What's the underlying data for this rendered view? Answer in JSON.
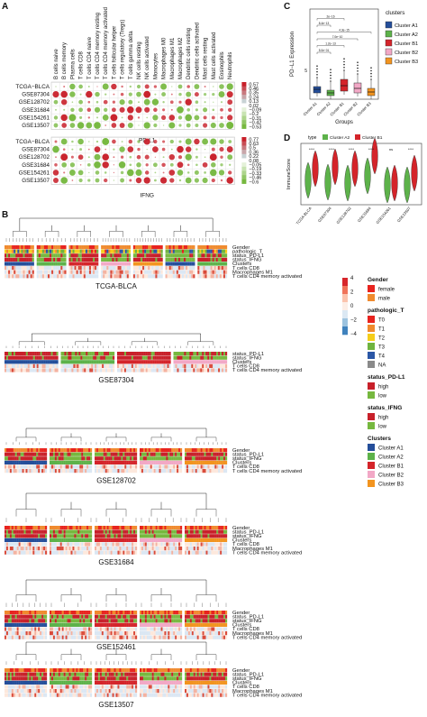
{
  "panels": {
    "A": "A",
    "B": "B",
    "C": "C",
    "D": "D"
  },
  "panelA": {
    "columns": [
      "B cells naive",
      "B cells memory",
      "Plasma cells",
      "T cells CD8",
      "T cells CD4 naive",
      "T cells CD4 memory resting",
      "T cells CD4 memory activated",
      "T cells follicular helper",
      "T cells regulatory (Tregs)",
      "T cells gamma delta",
      "NK cells resting",
      "NK cells activated",
      "Monocytes",
      "Macrophages M0",
      "Macrophages M1",
      "Macrophages M2",
      "Dendritic cells resting",
      "Dendritic cells activated",
      "Mast cells resting",
      "Mast cells activated",
      "Eosinophils",
      "Neutrophils"
    ],
    "rows": [
      "TCGA−BLCA",
      "GSE87304",
      "GSE128702",
      "GSE31684",
      "GSE154261",
      "GSE13507"
    ],
    "top_label": "PD-L1",
    "bottom_label": "IFNG",
    "top_scale": [
      "0.57",
      "0.46",
      "0.35",
      "0.24",
      "0.13",
      "0.02",
      "−0.09",
      "−0.2",
      "−0.31",
      "−0.42",
      "−0.53"
    ],
    "bottom_scale": [
      "0.77",
      "0.63",
      "0.5",
      "0.36",
      "0.22",
      "0.08",
      "−0.05",
      "−0.19",
      "−0.33",
      "−0.46",
      "−0.6"
    ]
  },
  "panelB": {
    "datasets": [
      {
        "name": "TCGA-BLCA",
        "tracks": [
          "Gender",
          "pathologic_T",
          "status_PD-L1",
          "status_IFNG",
          "Clusters",
          "T cells CD8",
          "Macrophages M1",
          "T cells CD4 memory activated"
        ]
      },
      {
        "name": "GSE87304",
        "tracks": [
          "status_PD-L1",
          "status_IFNG",
          "Clusters",
          "T cells CD8",
          "T cells CD4 memory activated"
        ]
      },
      {
        "name": "GSE128702",
        "tracks": [
          "Gender",
          "status_PD-L1",
          "status_IFNG",
          "Clusters",
          "T cells CD8",
          "T cells CD4 memory activated"
        ]
      },
      {
        "name": "GSE31684",
        "tracks": [
          "Gender",
          "status_PD-L1",
          "status_IFNG",
          "Clusters",
          "T cells CD8",
          "Macrophages M1",
          "T cells CD4 memory activated"
        ]
      },
      {
        "name": "GSE152461",
        "tracks": [
          "Gender",
          "status_PD-L1",
          "status_IFNG",
          "Clusters",
          "T cells CD8",
          "Macrophages M1",
          "T cells CD4 memory activated"
        ]
      },
      {
        "name": "GSE13507",
        "tracks": [
          "Gender",
          "status_PD-L1",
          "status_IFNG",
          "Clusters",
          "T cells CD8",
          "Macrophages M1",
          "T cells CD4 memory activated"
        ]
      }
    ],
    "legend": {
      "scale": [
        "4",
        "2",
        "0",
        "−2",
        "−4"
      ],
      "groups": [
        {
          "title": "Gender",
          "items": [
            {
              "label": "female",
              "color": "#e8231e"
            },
            {
              "label": "male",
              "color": "#f08a2e"
            }
          ]
        },
        {
          "title": "pathologic_T",
          "items": [
            {
              "label": "T0",
              "color": "#e8231e"
            },
            {
              "label": "T1",
              "color": "#f08a2e"
            },
            {
              "label": "T2",
              "color": "#f5cd1a"
            },
            {
              "label": "T3",
              "color": "#6fb43f"
            },
            {
              "label": "T4",
              "color": "#2b57a6"
            },
            {
              "label": "NA",
              "color": "#8a8a8a"
            }
          ]
        },
        {
          "title": "status_PD-L1",
          "items": [
            {
              "label": "high",
              "color": "#c8202a"
            },
            {
              "label": "low",
              "color": "#76b83f"
            }
          ]
        },
        {
          "title": "status_IFNG",
          "items": [
            {
              "label": "high",
              "color": "#c8202a"
            },
            {
              "label": "low",
              "color": "#76b83f"
            }
          ]
        },
        {
          "title": "Clusters",
          "items": [
            {
              "label": "Cluster A1",
              "color": "#244e9a"
            },
            {
              "label": "Cluster A2",
              "color": "#5db24a"
            },
            {
              "label": "Cluster B1",
              "color": "#d4242a"
            },
            {
              "label": "Cluster B2",
              "color": "#f2a8c6"
            },
            {
              "label": "Cluster B3",
              "color": "#f2941f"
            }
          ]
        }
      ]
    }
  },
  "panelC": {
    "ylabel": "PD−L1 Expression",
    "xlabel": "Groups",
    "legend_title": "clusters",
    "categories": [
      "Cluster A1",
      "Cluster A2",
      "Cluster B1",
      "Cluster B2",
      "Cluster B3"
    ],
    "colors": [
      "#244e9a",
      "#5db24a",
      "#d4242a",
      "#f2a8c6",
      "#f2941f"
    ],
    "ytick": "5",
    "pvalues": [
      "5.0e−01",
      "1.2e−13",
      "7.0e−10",
      "4.3e−15",
      "8.4e−13",
      "2e−16"
    ]
  },
  "panelD": {
    "ylabel": "ImmuneScore",
    "legend_title": "type",
    "legend": [
      {
        "label": "Cluster A2",
        "color": "#5db24a"
      },
      {
        "label": "Cluster B1",
        "color": "#d4242a"
      }
    ],
    "categories": [
      "TCGA-BLCA",
      "GSE87304",
      "GSE128702",
      "GSE31684",
      "GSE154261",
      "GSE13507"
    ],
    "signif": [
      "****",
      "****",
      "****",
      "****",
      "ns",
      "****"
    ]
  }
}
